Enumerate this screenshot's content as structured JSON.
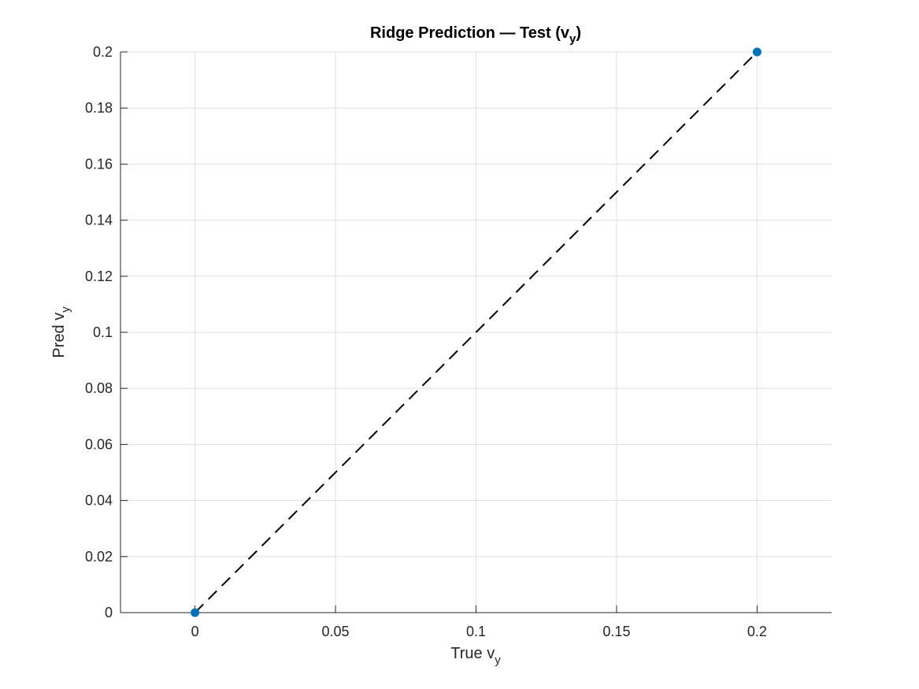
{
  "chart_data": {
    "type": "scatter",
    "title": {
      "prefix": "Ridge Prediction — Test (v",
      "subscript": "y",
      "suffix": ")"
    },
    "xlabel": {
      "main": "True v",
      "subscript": "y"
    },
    "ylabel": {
      "main": "Pred v",
      "subscript": "y"
    },
    "xlim": [
      -0.0265,
      0.2265
    ],
    "ylim": [
      0,
      0.2
    ],
    "x_ticks": [
      0,
      0.05,
      0.1,
      0.15,
      0.2
    ],
    "x_tick_labels": [
      "0",
      "0.05",
      "0.1",
      "0.15",
      "0.2"
    ],
    "y_ticks": [
      0,
      0.02,
      0.04,
      0.06,
      0.08,
      0.1,
      0.12,
      0.14,
      0.16,
      0.18,
      0.2
    ],
    "y_tick_labels": [
      "0",
      "0.02",
      "0.04",
      "0.06",
      "0.08",
      "0.1",
      "0.12",
      "0.14",
      "0.16",
      "0.18",
      "0.2"
    ],
    "grid": true,
    "series": [
      {
        "x": [
          0,
          0.2
        ],
        "y": [
          0,
          0.2
        ],
        "color": "#0072BD",
        "marker": "circle"
      }
    ],
    "reference_line": {
      "x": [
        0,
        0.2
      ],
      "y": [
        0,
        0.2
      ],
      "style": "dashed",
      "color": "#000000"
    }
  }
}
